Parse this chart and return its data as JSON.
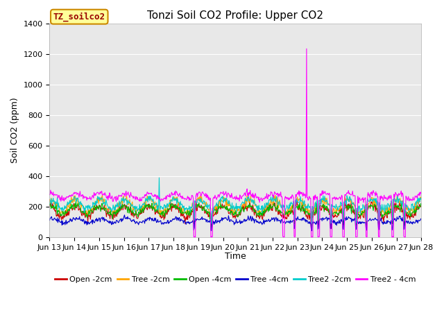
{
  "title": "Tonzi Soil CO2 Profile: Upper CO2",
  "xlabel": "Time",
  "ylabel": "Soil CO2 (ppm)",
  "ylim": [
    0,
    1400
  ],
  "legend_label": "TZ_soilco2",
  "series_names": [
    "Open -2cm",
    "Tree -2cm",
    "Open -4cm",
    "Tree -4cm",
    "Tree2 -2cm",
    "Tree2 - 4cm"
  ],
  "series_colors": [
    "#cc0000",
    "#ffa500",
    "#00bb00",
    "#0000cc",
    "#00cccc",
    "#ff00ff"
  ],
  "xtick_labels": [
    "Jun 13",
    "Jun 14",
    "Jun 15",
    "Jun 16",
    "Jun 17",
    "Jun 18",
    "Jun 19",
    "Jun 20",
    "Jun 21",
    "Jun 22",
    "Jun 23",
    "Jun 24",
    "Jun 25",
    "Jun 26",
    "Jun 27",
    "Jun 28"
  ],
  "fig_bg": "#ffffff",
  "plot_bg": "#e8e8e8",
  "legend_box_fc": "#ffff99",
  "legend_box_ec": "#cc8800",
  "legend_text_color": "#990000",
  "grid_color": "#ffffff",
  "title_fontsize": 11,
  "axis_fontsize": 9,
  "tick_fontsize": 8
}
